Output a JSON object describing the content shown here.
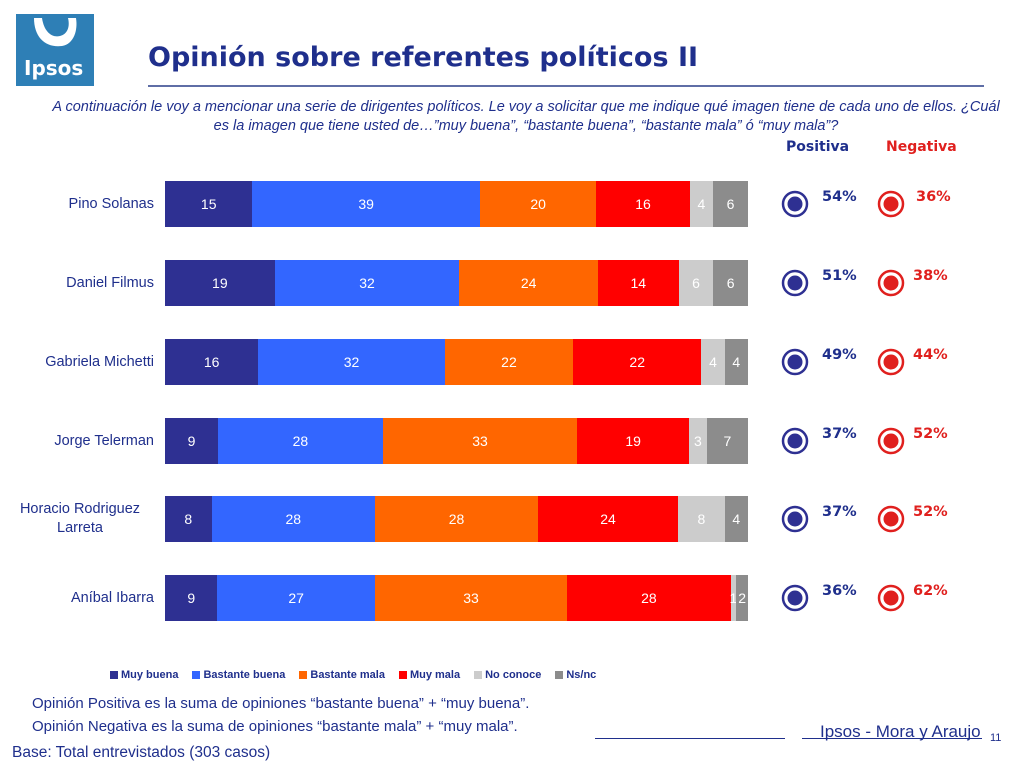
{
  "header": {
    "logo_text": "Ipsos",
    "title": "Opinión sobre referentes políticos II",
    "question": "A continuación le voy a mencionar  una serie de dirigentes políticos. Le voy a solicitar que me indique qué imagen tiene de cada uno de ellos. ¿Cuál es la imagen que tiene usted de…”muy buena”, “bastante buena”, “bastante mala” ó “muy mala”?"
  },
  "columns": {
    "positive": "Positiva",
    "negative": "Negativa"
  },
  "colors": {
    "muy_buena": "#2e3092",
    "bastante_buena": "#3366ff",
    "bastante_mala": "#ff6600",
    "muy_mala": "#ff0000",
    "no_conoce": "#cccccc",
    "ns_nc": "#8c8c8c",
    "title_blue": "#1f2f8c",
    "red": "#e0201e"
  },
  "chart_data": {
    "type": "bar",
    "orientation": "horizontal",
    "stacked": true,
    "categories": [
      "Pino Solanas",
      "Daniel Filmus",
      "Gabriela Michetti",
      "Jorge Telerman",
      "Horacio Rodriguez Larreta",
      "Aníbal Ibarra"
    ],
    "series": [
      {
        "name": "Muy buena",
        "values": [
          15,
          19,
          16,
          9,
          8,
          9
        ]
      },
      {
        "name": "Bastante buena",
        "values": [
          39,
          32,
          32,
          28,
          28,
          27
        ]
      },
      {
        "name": "Bastante mala",
        "values": [
          20,
          24,
          22,
          33,
          28,
          33
        ]
      },
      {
        "name": "Muy mala",
        "values": [
          16,
          14,
          22,
          19,
          24,
          28
        ]
      },
      {
        "name": "No conoce",
        "values": [
          4,
          6,
          4,
          3,
          8,
          1
        ]
      },
      {
        "name": "Ns/nc",
        "values": [
          6,
          6,
          4,
          7,
          4,
          2
        ]
      }
    ],
    "xlim": [
      0,
      100
    ],
    "legend": "bottom"
  },
  "summary": {
    "positive": [
      "54%",
      "51%",
      "49%",
      "37%",
      "37%",
      "36%"
    ],
    "negative": [
      "36%",
      "38%",
      "44%",
      "52%",
      "52%",
      "62%"
    ]
  },
  "notes": {
    "positive_def": "Opinión Positiva es la suma de opiniones “bastante buena” + “muy buena”.",
    "negative_def": "Opinión Negativa es la suma de opiniones “bastante mala” + “muy mala”.",
    "base": "Base: Total entrevistados (303 casos)"
  },
  "footer": {
    "brand": "Ipsos - Mora y Araujo",
    "page": "11"
  }
}
